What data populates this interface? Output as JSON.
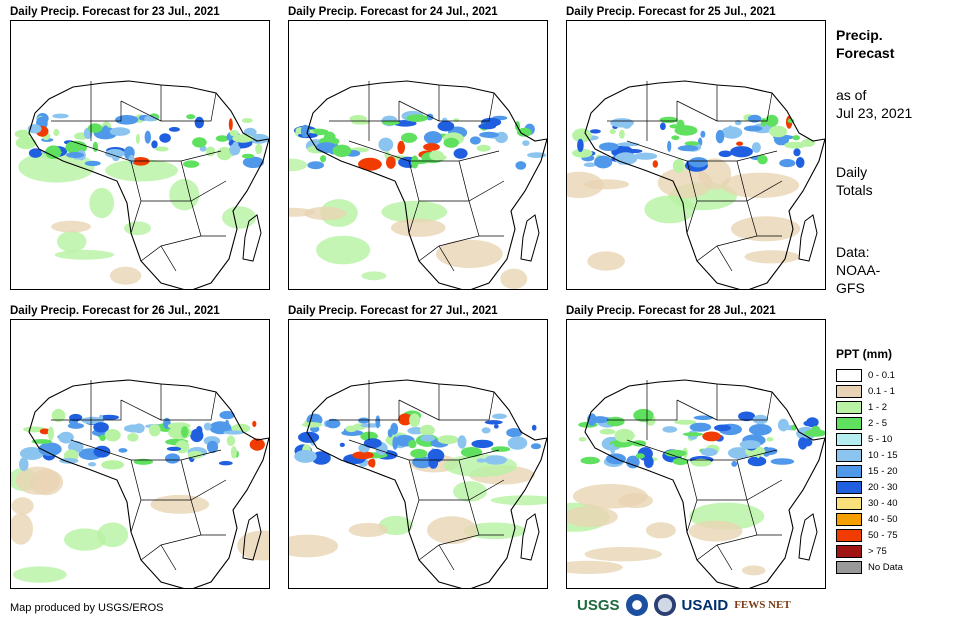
{
  "panels": [
    {
      "title": "Daily Precip. Forecast for 23 Jul., 2021"
    },
    {
      "title": "Daily Precip. Forecast for 24 Jul., 2021"
    },
    {
      "title": "Daily Precip. Forecast for 25 Jul., 2021"
    },
    {
      "title": "Daily Precip. Forecast for 26 Jul., 2021"
    },
    {
      "title": "Daily Precip. Forecast for 27 Jul., 2021"
    },
    {
      "title": "Daily Precip. Forecast for 28 Jul., 2021"
    }
  ],
  "sidebar": {
    "heading_line1": "Precip.",
    "heading_line2": "Forecast",
    "asof_line1": "as of",
    "asof_line2": "Jul 23, 2021",
    "totals_line1": "Daily",
    "totals_line2": "Totals",
    "data_line1": "Data:",
    "data_line2": "NOAA-",
    "data_line3": "GFS"
  },
  "legend": {
    "title": "PPT (mm)",
    "items": [
      {
        "label": "0 - 0.1",
        "color": "#ffffff"
      },
      {
        "label": "0.1 - 1",
        "color": "#e8d4b4"
      },
      {
        "label": "1 - 2",
        "color": "#b7f3a3"
      },
      {
        "label": "2 - 5",
        "color": "#5fe05f"
      },
      {
        "label": "5 - 10",
        "color": "#b4eef0"
      },
      {
        "label": "10 - 15",
        "color": "#8cc4f0"
      },
      {
        "label": "15 - 20",
        "color": "#4f98ea"
      },
      {
        "label": "20 - 30",
        "color": "#1f5fe0"
      },
      {
        "label": "30 - 40",
        "color": "#fae07a"
      },
      {
        "label": "40 - 50",
        "color": "#f5a000"
      },
      {
        "label": "50 - 75",
        "color": "#f03c00"
      },
      {
        "label": "> 75",
        "color": "#a01414"
      },
      {
        "label": "No Data",
        "color": "#999999"
      }
    ]
  },
  "footer": {
    "credit": "Map produced by USGS/EROS"
  },
  "logos": {
    "usgs": "USGS",
    "usaid": "USAID",
    "fews": "FEWS NET"
  }
}
